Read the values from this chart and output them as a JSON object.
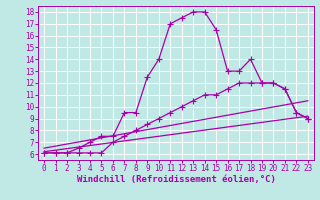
{
  "background_color": "#c0e8e4",
  "grid_color": "#ffffff",
  "line_color": "#aa00aa",
  "xlim": [
    -0.5,
    23.5
  ],
  "ylim": [
    5.5,
    18.5
  ],
  "xticks": [
    0,
    1,
    2,
    3,
    4,
    5,
    6,
    7,
    8,
    9,
    10,
    11,
    12,
    13,
    14,
    15,
    16,
    17,
    18,
    19,
    20,
    21,
    22,
    23
  ],
  "yticks": [
    6,
    7,
    8,
    9,
    10,
    11,
    12,
    13,
    14,
    15,
    16,
    17,
    18
  ],
  "line1_x": [
    0,
    1,
    2,
    3,
    4,
    5,
    6,
    7,
    8,
    9,
    10,
    11,
    12,
    13,
    14,
    15,
    16,
    17,
    18,
    19,
    20,
    21,
    22,
    23
  ],
  "line1_y": [
    6.1,
    6.1,
    6.1,
    6.5,
    7.0,
    7.5,
    7.5,
    9.5,
    9.5,
    12.5,
    14.0,
    17.0,
    17.5,
    18.0,
    18.0,
    16.5,
    13.0,
    13.0,
    14.0,
    12.0,
    12.0,
    11.5,
    9.5,
    9.0
  ],
  "line2_x": [
    0,
    1,
    2,
    3,
    4,
    5,
    6,
    7,
    8,
    9,
    10,
    11,
    12,
    13,
    14,
    15,
    16,
    17,
    18,
    19,
    20,
    21,
    22,
    23
  ],
  "line2_y": [
    6.1,
    6.1,
    6.1,
    6.1,
    6.1,
    6.1,
    7.0,
    7.5,
    8.0,
    8.5,
    9.0,
    9.5,
    10.0,
    10.5,
    11.0,
    11.0,
    11.5,
    12.0,
    12.0,
    12.0,
    12.0,
    11.5,
    9.5,
    9.0
  ],
  "line3_x": [
    0,
    23
  ],
  "line3_y": [
    6.2,
    9.2
  ],
  "line4_x": [
    0,
    23
  ],
  "line4_y": [
    6.5,
    10.5
  ],
  "xlabel": "Windchill (Refroidissement éolien,°C)",
  "marker": "+",
  "markersize": 4,
  "markeredgewidth": 0.8,
  "linewidth": 0.9,
  "tick_fontsize": 5.5,
  "xlabel_fontsize": 6.5
}
